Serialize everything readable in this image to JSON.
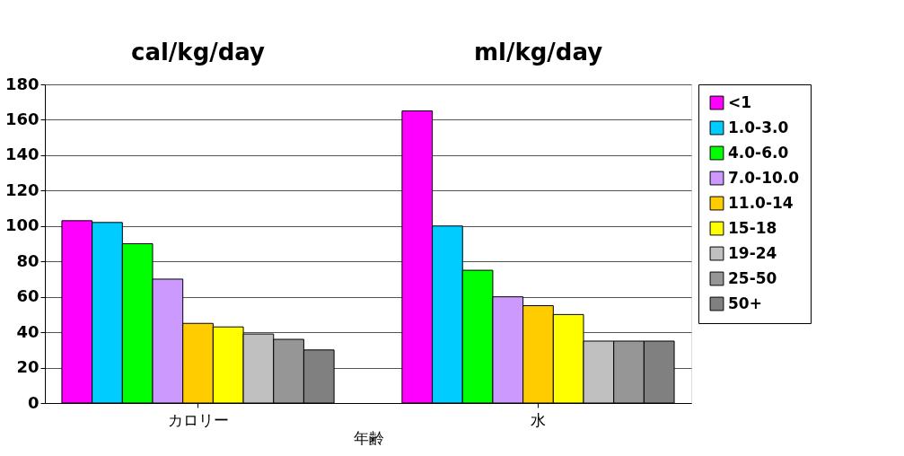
{
  "chart_data": {
    "type": "bar",
    "categories": [
      "カロリー",
      "水"
    ],
    "xlabel": "年齢",
    "annotations": [
      "cal/kg/day",
      "ml/kg/day"
    ],
    "series": [
      {
        "name": "<1",
        "color": "#ff00ff",
        "values": [
          103,
          165
        ]
      },
      {
        "name": "1.0-3.0",
        "color": "#00ccff",
        "values": [
          102,
          100
        ]
      },
      {
        "name": "4.0-6.0",
        "color": "#00ff00",
        "values": [
          90,
          75
        ]
      },
      {
        "name": "7.0-10.0",
        "color": "#cc99ff",
        "values": [
          70,
          60
        ]
      },
      {
        "name": "11.0-14",
        "color": "#ffcc00",
        "values": [
          45,
          55
        ]
      },
      {
        "name": "15-18",
        "color": "#ffff00",
        "values": [
          43,
          50
        ]
      },
      {
        "name": "19-24",
        "color": "#c0c0c0",
        "values": [
          39,
          35
        ]
      },
      {
        "name": "25-50",
        "color": "#969696",
        "values": [
          36,
          35
        ]
      },
      {
        "name": "50+",
        "color": "#808080",
        "values": [
          30,
          35
        ]
      }
    ],
    "ylim": [
      0,
      180
    ],
    "yticks": [
      0,
      20,
      40,
      60,
      80,
      100,
      120,
      140,
      160,
      180
    ],
    "grid": "y",
    "legend": "right"
  }
}
